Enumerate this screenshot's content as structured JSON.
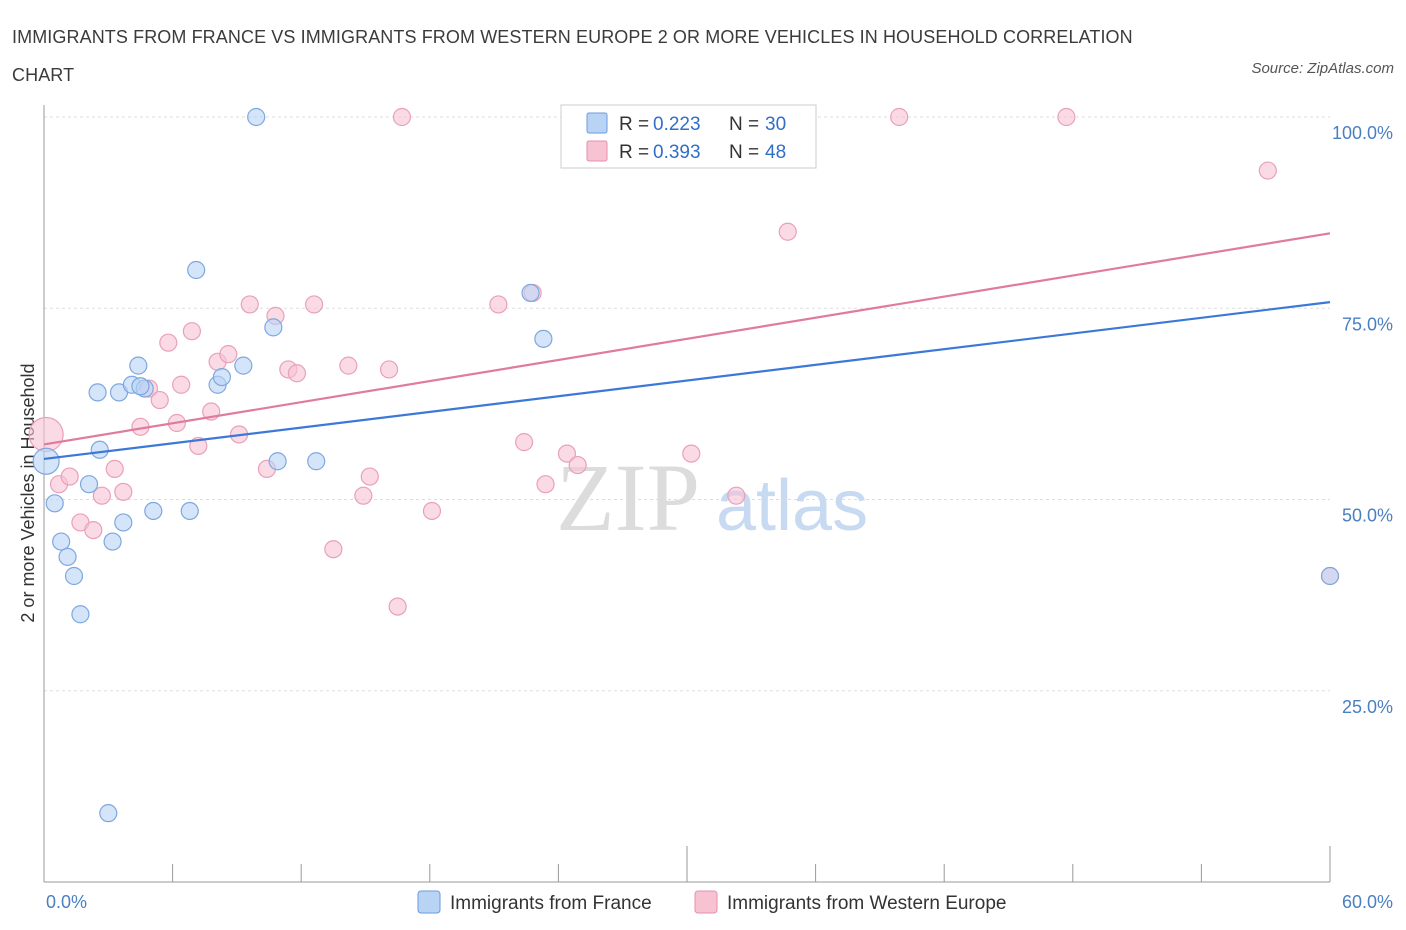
{
  "title": "IMMIGRANTS FROM FRANCE VS IMMIGRANTS FROM WESTERN EUROPE 2 OR MORE VEHICLES IN HOUSEHOLD CORRELATION CHART",
  "source": "Source: ZipAtlas.com",
  "watermark": {
    "zip": "ZIP",
    "atlas": "atlas"
  },
  "legend": {
    "france": {
      "r_label": "R = ",
      "r_value": "0.223",
      "n_label": "N = ",
      "n_value": "30"
    },
    "western": {
      "r_label": "R = ",
      "r_value": "0.393",
      "n_label": "N = ",
      "n_value": "48"
    }
  },
  "colors": {
    "france": "#3c78d8",
    "western": "#e07aa0",
    "france_fill": "#b9d3f5",
    "western_fill": "#f7c3d3"
  },
  "chart_data": {
    "type": "scatter",
    "xlabel": "",
    "ylabel": "2 or more Vehicles in Household",
    "xlim": [
      0,
      60
    ],
    "ylim": [
      0,
      100
    ],
    "x_tick_labels": [
      "0.0%",
      "60.0%"
    ],
    "y_ticks": [
      25,
      50,
      75,
      100
    ],
    "y_tick_labels": [
      "25.0%",
      "50.0%",
      "75.0%",
      "100.0%"
    ],
    "grid": true,
    "series": [
      {
        "name": "Immigrants from France",
        "trend": [
          [
            0,
            55.3
          ],
          [
            60,
            75.8
          ]
        ],
        "points": [
          [
            9.9,
            100
          ],
          [
            7.1,
            80
          ],
          [
            0.1,
            55
          ],
          [
            0.5,
            49.5
          ],
          [
            0.8,
            44.5
          ],
          [
            1.1,
            42.5
          ],
          [
            1.4,
            40
          ],
          [
            1.7,
            35
          ],
          [
            2.1,
            52
          ],
          [
            2.5,
            64
          ],
          [
            2.6,
            56.5
          ],
          [
            3.2,
            44.5
          ],
          [
            3.5,
            64
          ],
          [
            3.7,
            47
          ],
          [
            4.1,
            65
          ],
          [
            4.4,
            67.5
          ],
          [
            4.7,
            64.5
          ],
          [
            5.1,
            48.5
          ],
          [
            6.8,
            48.5
          ],
          [
            8.1,
            65
          ],
          [
            8.3,
            66
          ],
          [
            9.3,
            67.5
          ],
          [
            10.7,
            72.5
          ],
          [
            10.9,
            55
          ],
          [
            12.7,
            55
          ],
          [
            22.7,
            77
          ],
          [
            23.3,
            71
          ],
          [
            60,
            40
          ],
          [
            3.0,
            9
          ],
          [
            4.5,
            64.8
          ]
        ]
      },
      {
        "name": "Immigrants from Western Europe",
        "trend": [
          [
            0,
            57.2
          ],
          [
            60,
            84.8
          ]
        ],
        "points": [
          [
            16.7,
            100
          ],
          [
            33.4,
            100
          ],
          [
            39.9,
            100
          ],
          [
            47.7,
            100
          ],
          [
            57.1,
            93
          ],
          [
            34.7,
            85
          ],
          [
            0.1,
            58.5
          ],
          [
            0.7,
            52
          ],
          [
            1.2,
            53
          ],
          [
            1.7,
            47
          ],
          [
            2.3,
            46
          ],
          [
            2.7,
            50.5
          ],
          [
            3.3,
            54
          ],
          [
            3.7,
            51
          ],
          [
            4.5,
            59.5
          ],
          [
            4.9,
            64.5
          ],
          [
            5.4,
            63
          ],
          [
            5.8,
            70.5
          ],
          [
            6.4,
            65
          ],
          [
            6.9,
            72
          ],
          [
            7.2,
            57
          ],
          [
            7.8,
            61.5
          ],
          [
            8.1,
            68
          ],
          [
            8.6,
            69
          ],
          [
            9.1,
            58.5
          ],
          [
            9.6,
            75.5
          ],
          [
            10.4,
            54
          ],
          [
            10.8,
            74
          ],
          [
            11.4,
            67
          ],
          [
            11.8,
            66.5
          ],
          [
            12.6,
            75.5
          ],
          [
            13.5,
            43.5
          ],
          [
            14.2,
            67.5
          ],
          [
            14.9,
            50.5
          ],
          [
            15.2,
            53
          ],
          [
            16.1,
            67
          ],
          [
            16.5,
            36
          ],
          [
            18.1,
            48.5
          ],
          [
            21.2,
            75.5
          ],
          [
            22.4,
            57.5
          ],
          [
            22.8,
            77
          ],
          [
            23.4,
            52
          ],
          [
            24.4,
            56
          ],
          [
            24.9,
            54.5
          ],
          [
            30.2,
            56
          ],
          [
            32.3,
            50.5
          ],
          [
            60,
            40
          ],
          [
            6.2,
            60
          ]
        ]
      }
    ]
  }
}
